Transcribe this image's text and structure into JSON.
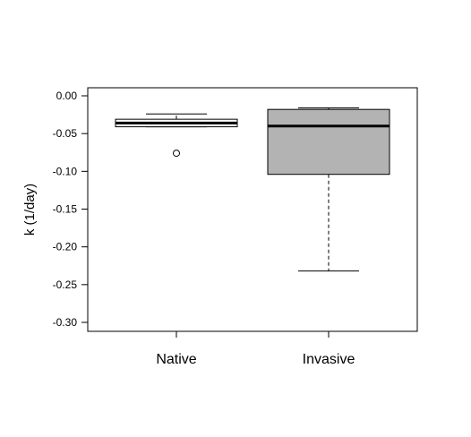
{
  "chart_data": {
    "type": "box",
    "title": "",
    "xlabel": "",
    "ylabel": "k (1/day)",
    "ylim": [
      -0.31,
      0.012
    ],
    "yticks": [
      "0.00",
      "-0.05",
      "-0.10",
      "-0.15",
      "-0.20",
      "-0.25",
      "-0.30"
    ],
    "ytick_values": [
      0.0,
      -0.05,
      -0.1,
      -0.15,
      -0.2,
      -0.25,
      -0.3
    ],
    "categories": [
      "Native",
      "Invasive"
    ],
    "boxes": [
      {
        "name": "Native",
        "whisker_low": -0.041,
        "q1": -0.041,
        "median": -0.036,
        "q3": -0.031,
        "whisker_high": -0.024,
        "outliers": [
          -0.076
        ],
        "fill": "#ffffff"
      },
      {
        "name": "Invasive",
        "whisker_low": -0.232,
        "q1": -0.104,
        "median": -0.04,
        "q3": -0.018,
        "whisker_high": -0.016,
        "outliers": [],
        "fill": "#b3b3b3"
      }
    ],
    "grid": false,
    "legend": "none"
  }
}
